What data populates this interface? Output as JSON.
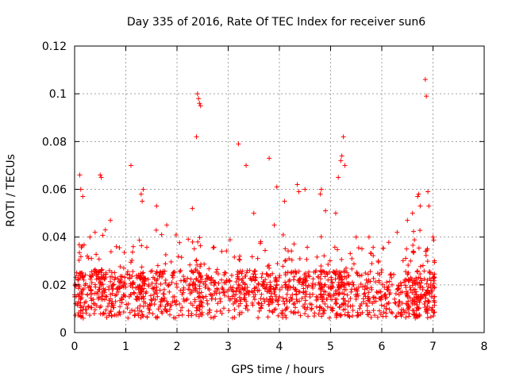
{
  "chart_data": {
    "type": "scatter",
    "title": "Day 335 of 2016, Rate Of TEC Index for receiver sun6",
    "xlabel": "GPS time / hours",
    "ylabel": "ROTI / TECUs",
    "xlim": [
      0,
      8
    ],
    "ylim": [
      0,
      0.12
    ],
    "x_ticks": [
      0,
      1,
      2,
      3,
      4,
      5,
      6,
      7,
      8
    ],
    "y_ticks": [
      0,
      0.02,
      0.04,
      0.06,
      0.08,
      0.1,
      0.12
    ],
    "x_tick_labels": [
      "0",
      "1",
      "2",
      "3",
      "4",
      "5",
      "6",
      "7",
      "8"
    ],
    "y_tick_labels": [
      "0",
      "0.02",
      "0.04",
      "0.06",
      "0.08",
      "0.1",
      "0.12"
    ],
    "grid": true,
    "marker": "+",
    "color": "#ff0000",
    "series": [
      {
        "name": "ROTI",
        "note": "dense scatter between x=0 and x~7.05; representative sample of points",
        "x": [
          0.0,
          0.05,
          0.08,
          0.12,
          0.15,
          0.18,
          0.22,
          0.25,
          0.3,
          0.35,
          0.4,
          0.45,
          0.5,
          0.55,
          0.6,
          0.65,
          0.7,
          0.75,
          0.8,
          0.85,
          0.9,
          0.95,
          1.0,
          1.05,
          1.1,
          1.15,
          1.2,
          1.25,
          1.3,
          1.35,
          1.4,
          1.45,
          1.5,
          1.55,
          1.6,
          1.65,
          1.7,
          1.75,
          1.8,
          1.85,
          1.9,
          1.95,
          2.0,
          2.05,
          2.1,
          2.15,
          2.2,
          2.25,
          2.3,
          2.35,
          2.4,
          2.45,
          2.5,
          2.55,
          2.6,
          2.65,
          2.7,
          2.75,
          2.8,
          2.85,
          2.9,
          2.95,
          3.0,
          3.05,
          3.1,
          3.15,
          3.2,
          3.25,
          3.3,
          3.35,
          3.4,
          3.45,
          3.5,
          3.55,
          3.6,
          3.65,
          3.7,
          3.75,
          3.8,
          3.85,
          3.9,
          3.95,
          4.0,
          4.05,
          4.1,
          4.15,
          4.2,
          4.25,
          4.3,
          4.35,
          4.4,
          4.45,
          4.5,
          4.55,
          4.6,
          4.65,
          4.7,
          4.75,
          4.8,
          4.85,
          4.9,
          4.95,
          5.0,
          5.05,
          5.1,
          5.15,
          5.2,
          5.25,
          5.3,
          5.35,
          5.4,
          5.45,
          5.5,
          5.55,
          5.6,
          5.65,
          5.7,
          5.75,
          5.8,
          5.85,
          5.9,
          5.95,
          6.0,
          6.05,
          6.1,
          6.15,
          6.2,
          6.25,
          6.3,
          6.35,
          6.4,
          6.45,
          6.5,
          6.55,
          6.6,
          6.65,
          6.7,
          6.75,
          6.8,
          6.85,
          6.9,
          6.95,
          7.0,
          7.03,
          0.1,
          0.12,
          0.16,
          0.5,
          0.52,
          1.1,
          1.3,
          1.32,
          1.34,
          2.3,
          2.38,
          2.4,
          2.42,
          2.44,
          2.46,
          3.2,
          3.35,
          3.8,
          3.95,
          4.35,
          4.38,
          4.8,
          4.82,
          5.15,
          5.2,
          5.22,
          5.25,
          5.28,
          5.75,
          6.7,
          6.72,
          6.75,
          6.85,
          6.87,
          6.9,
          6.92,
          0.3,
          0.4,
          0.6,
          0.7,
          1.6,
          1.7,
          1.8,
          3.5,
          3.9,
          4.1,
          4.5,
          4.9,
          5.1,
          5.5,
          6.3,
          6.5,
          6.6,
          7.0
        ],
        "y": [
          0.015,
          0.012,
          0.02,
          0.014,
          0.018,
          0.022,
          0.013,
          0.016,
          0.019,
          0.024,
          0.012,
          0.017,
          0.021,
          0.014,
          0.018,
          0.011,
          0.016,
          0.02,
          0.013,
          0.017,
          0.022,
          0.015,
          0.019,
          0.012,
          0.016,
          0.021,
          0.014,
          0.018,
          0.023,
          0.013,
          0.017,
          0.02,
          0.012,
          0.016,
          0.019,
          0.024,
          0.014,
          0.018,
          0.013,
          0.017,
          0.021,
          0.015,
          0.019,
          0.012,
          0.016,
          0.022,
          0.014,
          0.018,
          0.02,
          0.013,
          0.017,
          0.021,
          0.015,
          0.019,
          0.012,
          0.016,
          0.022,
          0.014,
          0.018,
          0.013,
          0.017,
          0.021,
          0.015,
          0.019,
          0.012,
          0.016,
          0.02,
          0.014,
          0.018,
          0.013,
          0.017,
          0.022,
          0.015,
          0.019,
          0.012,
          0.016,
          0.021,
          0.014,
          0.018,
          0.013,
          0.017,
          0.02,
          0.015,
          0.019,
          0.012,
          0.016,
          0.022,
          0.014,
          0.018,
          0.013,
          0.017,
          0.021,
          0.015,
          0.019,
          0.012,
          0.016,
          0.02,
          0.014,
          0.018,
          0.013,
          0.017,
          0.022,
          0.015,
          0.019,
          0.012,
          0.016,
          0.021,
          0.014,
          0.018,
          0.013,
          0.017,
          0.02,
          0.015,
          0.019,
          0.012,
          0.016,
          0.022,
          0.014,
          0.018,
          0.013,
          0.017,
          0.021,
          0.015,
          0.019,
          0.012,
          0.016,
          0.02,
          0.014,
          0.018,
          0.013,
          0.017,
          0.022,
          0.015,
          0.019,
          0.012,
          0.016,
          0.021,
          0.014,
          0.018,
          0.013,
          0.017,
          0.02,
          0.015,
          0.019,
          0.066,
          0.06,
          0.057,
          0.066,
          0.065,
          0.07,
          0.058,
          0.055,
          0.06,
          0.052,
          0.082,
          0.1,
          0.098,
          0.096,
          0.095,
          0.079,
          0.07,
          0.073,
          0.061,
          0.062,
          0.059,
          0.058,
          0.06,
          0.065,
          0.072,
          0.074,
          0.082,
          0.07,
          0.04,
          0.057,
          0.058,
          0.053,
          0.106,
          0.099,
          0.059,
          0.053,
          0.04,
          0.042,
          0.043,
          0.047,
          0.053,
          0.041,
          0.045,
          0.05,
          0.045,
          0.055,
          0.06,
          0.051,
          0.05,
          0.04,
          0.042,
          0.047,
          0.05,
          0.04
        ]
      }
    ]
  }
}
